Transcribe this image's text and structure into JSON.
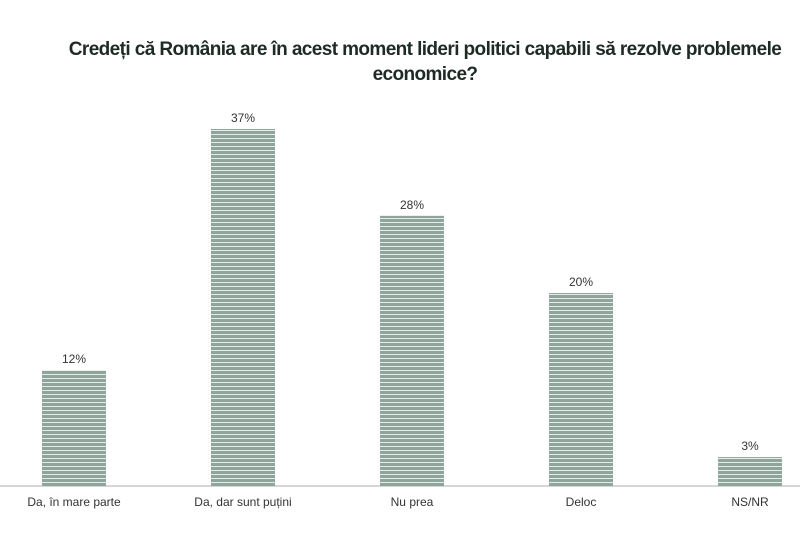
{
  "chart_data": {
    "type": "bar",
    "title": "Credeți că România are în acest moment lideri politici capabili să rezolve problemele economice?",
    "categories": [
      "Da, în mare parte",
      "Da, dar sunt puțini",
      "Nu prea",
      "Deloc",
      "NS/NR"
    ],
    "values": [
      12,
      37,
      28,
      20,
      3
    ],
    "value_labels": [
      "12%",
      "37%",
      "28%",
      "20%",
      "3%"
    ],
    "ylim": [
      0,
      37
    ],
    "grid": false,
    "bar_color": "#8fa59c",
    "stripe_color": "#e4ebe8"
  }
}
